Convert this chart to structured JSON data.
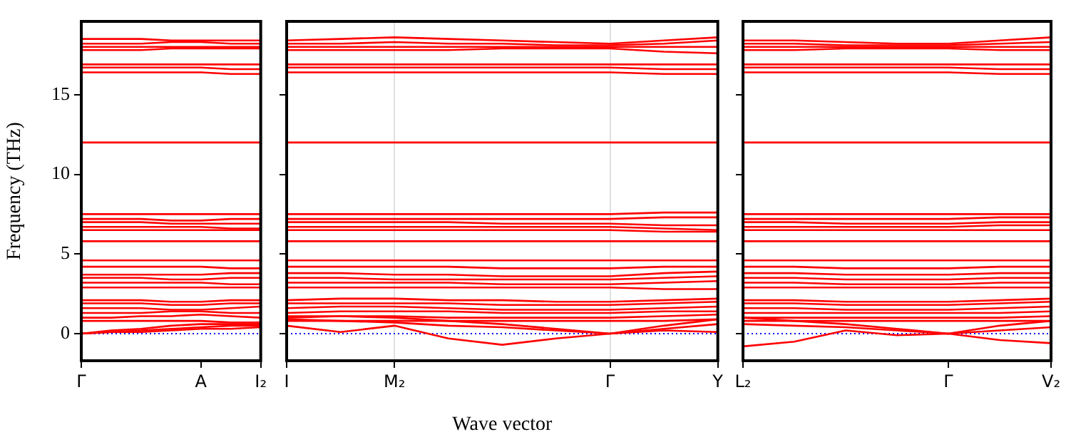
{
  "chart_data": [
    {
      "type": "line",
      "ylabel": "Frequency (THz)",
      "color": "#ff0000",
      "marker": "none",
      "categories": [
        "Γ",
        null,
        null,
        null,
        "A",
        null,
        "I₂"
      ],
      "ylim": [
        -1.7,
        19.6
      ],
      "yticks": [
        0,
        5,
        10,
        15
      ],
      "ref_lines": [
        {
          "axis": "y",
          "value": 0,
          "color": "#0000ff",
          "line_style": "dotted"
        }
      ],
      "series": [
        {
          "values": [
            18.5,
            18.5,
            18.5,
            18.4,
            18.4,
            18.4,
            18.4
          ]
        },
        {
          "values": [
            18.2,
            18.2,
            18.2,
            18.3,
            18.3,
            18.2,
            18.2
          ]
        },
        {
          "values": [
            18.0,
            18.0,
            18.0,
            18.0,
            18.0,
            18.0,
            18.0
          ]
        },
        {
          "values": [
            17.8,
            17.8,
            17.8,
            17.9,
            17.9,
            17.9,
            17.9
          ]
        },
        {
          "values": [
            16.9,
            16.9,
            16.9,
            16.9,
            16.9,
            16.9,
            16.9
          ]
        },
        {
          "values": [
            16.7,
            16.7,
            16.7,
            16.7,
            16.7,
            16.6,
            16.6
          ]
        },
        {
          "values": [
            16.4,
            16.4,
            16.4,
            16.4,
            16.4,
            16.3,
            16.3
          ]
        },
        {
          "values": [
            12.0,
            12.0,
            12.0,
            12.0,
            12.0,
            12.0,
            12.0
          ]
        },
        {
          "values": [
            7.5,
            7.5,
            7.5,
            7.5,
            7.5,
            7.5,
            7.5
          ]
        },
        {
          "values": [
            7.2,
            7.2,
            7.2,
            7.1,
            7.1,
            7.2,
            7.2
          ]
        },
        {
          "values": [
            7.0,
            7.0,
            7.0,
            6.9,
            6.9,
            6.9,
            6.9
          ]
        },
        {
          "values": [
            6.7,
            6.7,
            6.7,
            6.7,
            6.7,
            6.6,
            6.6
          ]
        },
        {
          "values": [
            6.5,
            6.5,
            6.5,
            6.5,
            6.5,
            6.5,
            6.5
          ]
        },
        {
          "values": [
            5.8,
            5.8,
            5.8,
            5.8,
            5.8,
            5.8,
            5.8
          ]
        },
        {
          "values": [
            4.6,
            4.6,
            4.6,
            4.6,
            4.6,
            4.6,
            4.6
          ]
        },
        {
          "values": [
            4.2,
            4.2,
            4.2,
            4.2,
            4.2,
            4.1,
            4.1
          ]
        },
        {
          "values": [
            3.7,
            3.7,
            3.7,
            3.7,
            3.7,
            3.8,
            3.8
          ]
        },
        {
          "values": [
            3.5,
            3.5,
            3.5,
            3.4,
            3.4,
            3.5,
            3.5
          ]
        },
        {
          "values": [
            3.2,
            3.2,
            3.2,
            3.2,
            3.2,
            3.1,
            3.1
          ]
        },
        {
          "values": [
            2.9,
            2.9,
            2.9,
            2.9,
            2.9,
            2.9,
            2.9
          ]
        },
        {
          "values": [
            2.1,
            2.1,
            2.1,
            2.0,
            2.0,
            2.1,
            2.1
          ]
        },
        {
          "values": [
            1.9,
            1.9,
            1.9,
            1.8,
            1.8,
            1.9,
            1.9
          ]
        },
        {
          "values": [
            1.6,
            1.6,
            1.6,
            1.5,
            1.5,
            1.6,
            1.7
          ]
        },
        {
          "values": [
            1.3,
            1.3,
            1.3,
            1.4,
            1.4,
            1.3,
            1.3
          ]
        },
        {
          "values": [
            1.0,
            1.0,
            1.1,
            1.1,
            1.2,
            1.1,
            1.0
          ]
        },
        {
          "values": [
            0.8,
            0.8,
            0.8,
            0.8,
            0.8,
            0.7,
            0.7
          ]
        },
        {
          "values": [
            0,
            0.2,
            0.3,
            0.5,
            0.6,
            0.6,
            0.6
          ]
        },
        {
          "values": [
            0,
            0.1,
            0.2,
            0.3,
            0.4,
            0.5,
            0.5
          ]
        },
        {
          "values": [
            0,
            0.1,
            0.1,
            0.2,
            0.3,
            0.3,
            0.4
          ]
        }
      ]
    },
    {
      "type": "line",
      "xlabel": "Wave vector",
      "color": "#ff0000",
      "marker": "none",
      "grid": "x",
      "tick_labels": "x",
      "categories": [
        "I",
        null,
        "M₂",
        null,
        null,
        null,
        "Γ",
        null,
        "Y"
      ],
      "ylim": [
        -1.7,
        19.6
      ],
      "yticks": [
        0,
        5,
        10,
        15
      ],
      "ref_lines": [
        {
          "axis": "y",
          "value": 0,
          "color": "#0000ff",
          "line_style": "dotted"
        }
      ],
      "series": [
        {
          "values": [
            18.4,
            18.5,
            18.6,
            18.5,
            18.4,
            18.3,
            18.2,
            18.4,
            18.6
          ]
        },
        {
          "values": [
            18.2,
            18.2,
            18.3,
            18.2,
            18.2,
            18.1,
            18.1,
            18.2,
            18.4
          ]
        },
        {
          "values": [
            18.0,
            18.0,
            18.0,
            18.0,
            18.0,
            18.0,
            18.0,
            18.0,
            18.0
          ]
        },
        {
          "values": [
            17.8,
            17.8,
            17.8,
            17.8,
            17.9,
            17.9,
            17.9,
            17.7,
            17.6
          ]
        },
        {
          "values": [
            16.9,
            16.9,
            16.9,
            16.9,
            16.9,
            16.9,
            16.9,
            16.9,
            16.9
          ]
        },
        {
          "values": [
            16.7,
            16.7,
            16.7,
            16.7,
            16.7,
            16.7,
            16.7,
            16.6,
            16.6
          ]
        },
        {
          "values": [
            16.4,
            16.4,
            16.4,
            16.4,
            16.4,
            16.4,
            16.4,
            16.3,
            16.3
          ]
        },
        {
          "values": [
            12.0,
            12.0,
            12.0,
            12.0,
            12.0,
            12.0,
            12.0,
            12.0,
            12.0
          ]
        },
        {
          "values": [
            7.5,
            7.5,
            7.5,
            7.5,
            7.5,
            7.5,
            7.5,
            7.6,
            7.6
          ]
        },
        {
          "values": [
            7.2,
            7.2,
            7.2,
            7.2,
            7.2,
            7.2,
            7.2,
            7.3,
            7.3
          ]
        },
        {
          "values": [
            7.0,
            7.0,
            7.0,
            7.0,
            6.9,
            6.9,
            6.9,
            6.8,
            6.8
          ]
        },
        {
          "values": [
            6.7,
            6.7,
            6.7,
            6.7,
            6.7,
            6.7,
            6.7,
            6.6,
            6.5
          ]
        },
        {
          "values": [
            6.5,
            6.5,
            6.5,
            6.5,
            6.5,
            6.5,
            6.5,
            6.4,
            6.4
          ]
        },
        {
          "values": [
            5.8,
            5.8,
            5.8,
            5.8,
            5.8,
            5.8,
            5.8,
            5.8,
            5.8
          ]
        },
        {
          "values": [
            4.6,
            4.6,
            4.6,
            4.6,
            4.6,
            4.6,
            4.6,
            4.6,
            4.6
          ]
        },
        {
          "values": [
            4.2,
            4.2,
            4.2,
            4.2,
            4.1,
            4.1,
            4.1,
            4.2,
            4.2
          ]
        },
        {
          "values": [
            3.8,
            3.8,
            3.7,
            3.7,
            3.6,
            3.6,
            3.6,
            3.8,
            3.9
          ]
        },
        {
          "values": [
            3.5,
            3.5,
            3.4,
            3.4,
            3.4,
            3.4,
            3.4,
            3.5,
            3.6
          ]
        },
        {
          "values": [
            3.2,
            3.2,
            3.2,
            3.2,
            3.1,
            3.1,
            3.1,
            3.2,
            3.3
          ]
        },
        {
          "values": [
            2.9,
            2.9,
            2.9,
            2.9,
            2.9,
            2.9,
            2.9,
            2.8,
            2.8
          ]
        },
        {
          "values": [
            2.1,
            2.2,
            2.2,
            2.1,
            2.1,
            2.0,
            2.0,
            2.1,
            2.2
          ]
        },
        {
          "values": [
            1.9,
            1.9,
            1.9,
            1.9,
            1.8,
            1.8,
            1.8,
            1.9,
            2.0
          ]
        },
        {
          "values": [
            1.6,
            1.7,
            1.7,
            1.6,
            1.5,
            1.5,
            1.5,
            1.6,
            1.7
          ]
        },
        {
          "values": [
            1.3,
            1.4,
            1.4,
            1.4,
            1.3,
            1.3,
            1.3,
            1.4,
            1.4
          ]
        },
        {
          "values": [
            1.0,
            1.1,
            1.1,
            1.0,
            1.0,
            1.0,
            1.0,
            1.1,
            1.2
          ]
        },
        {
          "values": [
            0.8,
            0.8,
            0.8,
            0.8,
            0.8,
            0.8,
            0.8,
            0.8,
            0.9
          ]
        },
        {
          "values": [
            1.1,
            1.1,
            1.0,
            0.8,
            0.6,
            0.3,
            0,
            0.5,
            0.9
          ]
        },
        {
          "values": [
            0.9,
            0.8,
            0.7,
            0.5,
            0.4,
            0.2,
            0,
            0.3,
            0.6
          ]
        },
        {
          "values": [
            0.5,
            0.1,
            0.5,
            -0.3,
            -0.7,
            -0.3,
            0,
            0.2,
            0.1
          ]
        }
      ]
    },
    {
      "type": "line",
      "color": "#ff0000",
      "marker": "none",
      "tick_labels": "x",
      "categories": [
        "L₂",
        null,
        null,
        null,
        "Γ",
        null,
        "V₂"
      ],
      "ylim": [
        -1.7,
        19.6
      ],
      "yticks": [
        0,
        5,
        10,
        15
      ],
      "ref_lines": [
        {
          "axis": "y",
          "value": 0,
          "color": "#0000ff",
          "line_style": "dotted"
        }
      ],
      "series": [
        {
          "values": [
            18.4,
            18.4,
            18.3,
            18.2,
            18.2,
            18.4,
            18.6
          ]
        },
        {
          "values": [
            18.2,
            18.2,
            18.1,
            18.1,
            18.1,
            18.2,
            18.3
          ]
        },
        {
          "values": [
            18.0,
            18.0,
            18.0,
            18.0,
            18.0,
            18.0,
            18.0
          ]
        },
        {
          "values": [
            17.8,
            17.8,
            17.9,
            17.9,
            17.9,
            17.8,
            17.8
          ]
        },
        {
          "values": [
            16.9,
            16.9,
            16.9,
            16.9,
            16.9,
            16.9,
            16.9
          ]
        },
        {
          "values": [
            16.7,
            16.7,
            16.7,
            16.7,
            16.7,
            16.6,
            16.6
          ]
        },
        {
          "values": [
            16.4,
            16.4,
            16.4,
            16.4,
            16.4,
            16.3,
            16.3
          ]
        },
        {
          "values": [
            12.0,
            12.0,
            12.0,
            12.0,
            12.0,
            12.0,
            12.0
          ]
        },
        {
          "values": [
            7.5,
            7.5,
            7.5,
            7.5,
            7.5,
            7.5,
            7.5
          ]
        },
        {
          "values": [
            7.2,
            7.2,
            7.2,
            7.2,
            7.2,
            7.3,
            7.3
          ]
        },
        {
          "values": [
            7.0,
            7.0,
            6.9,
            6.9,
            6.9,
            7.0,
            7.0
          ]
        },
        {
          "values": [
            6.7,
            6.7,
            6.7,
            6.7,
            6.7,
            6.8,
            6.8
          ]
        },
        {
          "values": [
            6.5,
            6.5,
            6.5,
            6.5,
            6.5,
            6.5,
            6.5
          ]
        },
        {
          "values": [
            5.8,
            5.8,
            5.8,
            5.8,
            5.8,
            5.8,
            5.8
          ]
        },
        {
          "values": [
            4.6,
            4.6,
            4.6,
            4.6,
            4.6,
            4.6,
            4.6
          ]
        },
        {
          "values": [
            4.2,
            4.2,
            4.1,
            4.1,
            4.1,
            4.2,
            4.2
          ]
        },
        {
          "values": [
            3.8,
            3.8,
            3.7,
            3.7,
            3.7,
            3.8,
            3.8
          ]
        },
        {
          "values": [
            3.5,
            3.5,
            3.4,
            3.4,
            3.4,
            3.5,
            3.5
          ]
        },
        {
          "values": [
            3.2,
            3.2,
            3.1,
            3.1,
            3.1,
            3.2,
            3.2
          ]
        },
        {
          "values": [
            2.9,
            2.9,
            2.9,
            2.9,
            2.9,
            2.9,
            2.9
          ]
        },
        {
          "values": [
            2.1,
            2.1,
            2.0,
            2.0,
            2.0,
            2.1,
            2.2
          ]
        },
        {
          "values": [
            1.9,
            1.9,
            1.8,
            1.8,
            1.8,
            1.9,
            2.0
          ]
        },
        {
          "values": [
            1.6,
            1.6,
            1.5,
            1.5,
            1.5,
            1.6,
            1.7
          ]
        },
        {
          "values": [
            1.3,
            1.3,
            1.3,
            1.3,
            1.3,
            1.3,
            1.4
          ]
        },
        {
          "values": [
            1.0,
            1.0,
            1.0,
            1.0,
            1.0,
            1.0,
            1.1
          ]
        },
        {
          "values": [
            0.8,
            0.8,
            0.8,
            0.8,
            0.8,
            0.8,
            0.8
          ]
        },
        {
          "values": [
            1.0,
            0.8,
            0.6,
            0.3,
            0,
            0.5,
            0.8
          ]
        },
        {
          "values": [
            0.6,
            0.5,
            0.4,
            0.2,
            0,
            0.2,
            0.4
          ]
        },
        {
          "values": [
            -0.8,
            -0.5,
            0.2,
            -0.1,
            0,
            -0.4,
            -0.6
          ]
        }
      ]
    }
  ]
}
